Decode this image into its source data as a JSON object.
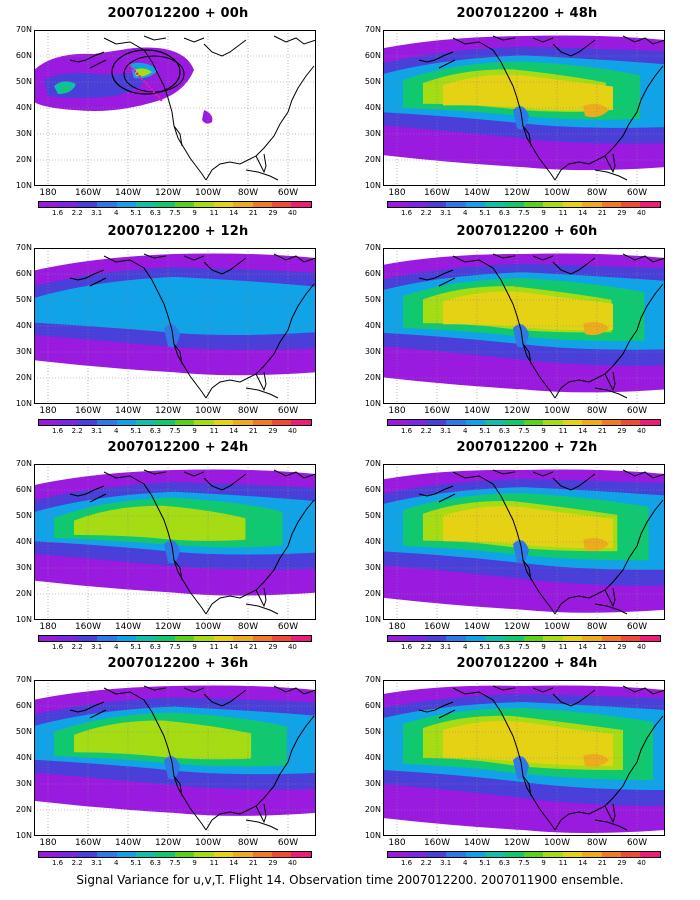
{
  "figure": {
    "caption": "Signal Variance for u,v,T. Flight 14. Observation time 2007012200. 2007011900 ensemble.",
    "lat_labels": [
      "70N",
      "60N",
      "50N",
      "40N",
      "30N",
      "20N",
      "10N"
    ],
    "lon_labels": [
      "180",
      "160W",
      "140W",
      "120W",
      "100W",
      "80W",
      "60W"
    ],
    "colorbar_labels": [
      "1.6",
      "2.2",
      "3.1",
      "4",
      "5.1",
      "6.3",
      "7.5",
      "9",
      "11",
      "14",
      "21",
      "29",
      "40"
    ],
    "colorbar_colors": [
      "#9a1ae0",
      "#8023e8",
      "#4a3fd8",
      "#2b7ae8",
      "#10a3e8",
      "#10bfa8",
      "#10c870",
      "#5ad21c",
      "#a6dc14",
      "#e6d214",
      "#ecac1c",
      "#f07a28",
      "#f04a3a",
      "#f01a7a"
    ],
    "land_outline_color": "#000000",
    "grid": "dotted"
  },
  "panels": [
    {
      "title": "2007012200 + 00h",
      "lead": 0
    },
    {
      "title": "2007012200 + 48h",
      "lead": 48
    },
    {
      "title": "2007012200 + 12h",
      "lead": 12
    },
    {
      "title": "2007012200 + 60h",
      "lead": 60
    },
    {
      "title": "2007012200 + 24h",
      "lead": 24
    },
    {
      "title": "2007012200 + 72h",
      "lead": 72
    },
    {
      "title": "2007012200 + 36h",
      "lead": 36
    },
    {
      "title": "2007012200 + 84h",
      "lead": 84
    }
  ]
}
